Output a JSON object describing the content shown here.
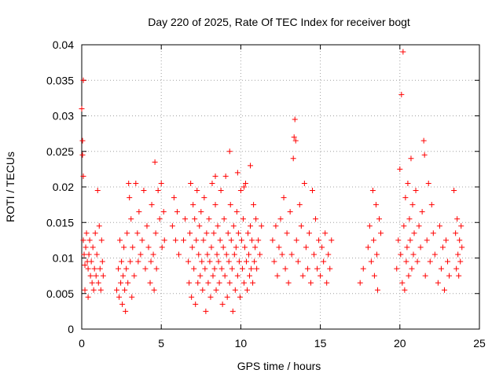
{
  "chart_data": {
    "type": "scatter",
    "title": "Day 220 of 2025, Rate Of TEC Index for receiver bogt",
    "xlabel": "GPS time / hours",
    "ylabel": "ROTI / TECUs",
    "xlim": [
      0,
      25
    ],
    "ylim": [
      0,
      0.04
    ],
    "xticks": [
      0,
      5,
      10,
      15,
      20,
      25
    ],
    "xtick_labels": [
      "0",
      "5",
      "10",
      "15",
      "20",
      "25"
    ],
    "yticks": [
      0,
      0.005,
      0.01,
      0.015,
      0.02,
      0.025,
      0.03,
      0.035,
      0.04
    ],
    "ytick_labels": [
      "0",
      "0.005",
      "0.01",
      "0.015",
      "0.02",
      "0.025",
      "0.03",
      "0.035",
      "0.04"
    ],
    "grid": true,
    "marker": "+",
    "color": "#ff0000",
    "series": [
      {
        "name": "ROTI",
        "points": [
          [
            0.0,
            0.031
          ],
          [
            0.05,
            0.0265
          ],
          [
            0.05,
            0.0245
          ],
          [
            0.1,
            0.035
          ],
          [
            0.1,
            0.0215
          ],
          [
            0.1,
            0.0125
          ],
          [
            0.15,
            0.0105
          ],
          [
            0.2,
            0.009
          ],
          [
            0.2,
            0.0055
          ],
          [
            0.25,
            0.0115
          ],
          [
            0.3,
            0.0135
          ],
          [
            0.35,
            0.0095
          ],
          [
            0.4,
            0.0085
          ],
          [
            0.4,
            0.0045
          ],
          [
            0.45,
            0.0105
          ],
          [
            0.5,
            0.0125
          ],
          [
            0.55,
            0.0075
          ],
          [
            0.6,
            0.0095
          ],
          [
            0.65,
            0.0065
          ],
          [
            0.7,
            0.0115
          ],
          [
            0.75,
            0.0055
          ],
          [
            0.8,
            0.0085
          ],
          [
            0.85,
            0.0135
          ],
          [
            0.9,
            0.0075
          ],
          [
            0.95,
            0.0105
          ],
          [
            1.0,
            0.0195
          ],
          [
            1.05,
            0.0065
          ],
          [
            1.1,
            0.0145
          ],
          [
            1.15,
            0.0085
          ],
          [
            1.2,
            0.0055
          ],
          [
            1.25,
            0.0125
          ],
          [
            1.3,
            0.0095
          ],
          [
            1.35,
            0.0075
          ],
          [
            2.2,
            0.0055
          ],
          [
            2.3,
            0.0085
          ],
          [
            2.35,
            0.0045
          ],
          [
            2.4,
            0.0125
          ],
          [
            2.45,
            0.0065
          ],
          [
            2.5,
            0.0095
          ],
          [
            2.55,
            0.0035
          ],
          [
            2.6,
            0.0075
          ],
          [
            2.65,
            0.0115
          ],
          [
            2.7,
            0.0055
          ],
          [
            2.75,
            0.0025
          ],
          [
            2.8,
            0.0085
          ],
          [
            2.85,
            0.0135
          ],
          [
            2.9,
            0.0065
          ],
          [
            2.95,
            0.0205
          ],
          [
            3.0,
            0.0185
          ],
          [
            3.05,
            0.0095
          ],
          [
            3.1,
            0.0155
          ],
          [
            3.15,
            0.0045
          ],
          [
            3.2,
            0.0115
          ],
          [
            3.3,
            0.0075
          ],
          [
            3.4,
            0.0205
          ],
          [
            3.5,
            0.0135
          ],
          [
            3.55,
            0.0095
          ],
          [
            3.6,
            0.0165
          ],
          [
            3.7,
            0.0105
          ],
          [
            3.8,
            0.0125
          ],
          [
            3.9,
            0.0195
          ],
          [
            4.0,
            0.0085
          ],
          [
            4.1,
            0.0145
          ],
          [
            4.2,
            0.0115
          ],
          [
            4.3,
            0.0065
          ],
          [
            4.35,
            0.0095
          ],
          [
            4.4,
            0.0175
          ],
          [
            4.5,
            0.0105
          ],
          [
            4.55,
            0.0055
          ],
          [
            4.6,
            0.0235
          ],
          [
            4.65,
            0.0135
          ],
          [
            4.7,
            0.0085
          ],
          [
            4.8,
            0.0195
          ],
          [
            4.9,
            0.0155
          ],
          [
            5.0,
            0.0205
          ],
          [
            5.05,
            0.0115
          ],
          [
            5.15,
            0.0165
          ],
          [
            5.2,
            0.0125
          ],
          [
            5.7,
            0.0145
          ],
          [
            5.8,
            0.0185
          ],
          [
            5.9,
            0.0125
          ],
          [
            6.0,
            0.0165
          ],
          [
            6.1,
            0.0105
          ],
          [
            6.4,
            0.0125
          ],
          [
            6.5,
            0.0155
          ],
          [
            6.7,
            0.0095
          ],
          [
            6.75,
            0.0065
          ],
          [
            6.8,
            0.0135
          ],
          [
            6.85,
            0.0205
          ],
          [
            6.9,
            0.0045
          ],
          [
            6.95,
            0.0115
          ],
          [
            7.0,
            0.0175
          ],
          [
            7.05,
            0.0085
          ],
          [
            7.1,
            0.0155
          ],
          [
            7.15,
            0.0035
          ],
          [
            7.2,
            0.0125
          ],
          [
            7.25,
            0.0195
          ],
          [
            7.3,
            0.0065
          ],
          [
            7.35,
            0.0105
          ],
          [
            7.4,
            0.0145
          ],
          [
            7.45,
            0.0075
          ],
          [
            7.5,
            0.0165
          ],
          [
            7.55,
            0.0095
          ],
          [
            7.6,
            0.0055
          ],
          [
            7.65,
            0.0125
          ],
          [
            7.7,
            0.0185
          ],
          [
            7.75,
            0.0085
          ],
          [
            7.8,
            0.0025
          ],
          [
            7.85,
            0.0135
          ],
          [
            7.9,
            0.0105
          ],
          [
            7.95,
            0.0065
          ],
          [
            8.0,
            0.0155
          ],
          [
            8.05,
            0.0095
          ],
          [
            8.1,
            0.0045
          ],
          [
            8.15,
            0.0115
          ],
          [
            8.2,
            0.0205
          ],
          [
            8.25,
            0.0075
          ],
          [
            8.3,
            0.0135
          ],
          [
            8.35,
            0.0085
          ],
          [
            8.4,
            0.0175
          ],
          [
            8.45,
            0.0055
          ],
          [
            8.5,
            0.0105
          ],
          [
            8.55,
            0.0145
          ],
          [
            8.6,
            0.0095
          ],
          [
            8.65,
            0.0065
          ],
          [
            8.7,
            0.0125
          ],
          [
            8.75,
            0.0195
          ],
          [
            8.8,
            0.0085
          ],
          [
            8.85,
            0.0035
          ],
          [
            8.9,
            0.0115
          ],
          [
            8.95,
            0.0155
          ],
          [
            9.0,
            0.0075
          ],
          [
            9.05,
            0.0215
          ],
          [
            9.1,
            0.0105
          ],
          [
            9.15,
            0.0045
          ],
          [
            9.2,
            0.0135
          ],
          [
            9.25,
            0.0095
          ],
          [
            9.3,
            0.0065
          ],
          [
            9.35,
            0.0175
          ],
          [
            9.4,
            0.0125
          ],
          [
            9.45,
            0.0085
          ],
          [
            9.5,
            0.0025
          ],
          [
            9.55,
            0.0145
          ],
          [
            9.6,
            0.0105
          ],
          [
            9.65,
            0.0055
          ],
          [
            9.7,
            0.0115
          ],
          [
            9.75,
            0.0165
          ],
          [
            9.8,
            0.0075
          ],
          [
            9.85,
            0.0135
          ],
          [
            9.9,
            0.0095
          ],
          [
            9.95,
            0.0045
          ],
          [
            10.0,
            0.0195
          ],
          [
            10.05,
            0.0125
          ],
          [
            10.1,
            0.0085
          ],
          [
            10.15,
            0.0155
          ],
          [
            10.2,
            0.0065
          ],
          [
            10.25,
            0.0115
          ],
          [
            10.3,
            0.0205
          ],
          [
            10.35,
            0.0095
          ],
          [
            10.4,
            0.0055
          ],
          [
            10.45,
            0.0135
          ],
          [
            10.5,
            0.0105
          ],
          [
            10.55,
            0.0075
          ],
          [
            10.6,
            0.0145
          ],
          [
            10.65,
            0.0085
          ],
          [
            10.7,
            0.0125
          ],
          [
            10.75,
            0.0065
          ],
          [
            10.8,
            0.0175
          ],
          [
            10.85,
            0.0095
          ],
          [
            10.9,
            0.0115
          ],
          [
            10.95,
            0.0155
          ],
          [
            11.0,
            0.0085
          ],
          [
            11.1,
            0.0125
          ],
          [
            11.2,
            0.0105
          ],
          [
            11.3,
            0.0145
          ],
          [
            9.3,
            0.025
          ],
          [
            8.4,
            0.0215
          ],
          [
            10.6,
            0.023
          ],
          [
            9.8,
            0.022
          ],
          [
            10.2,
            0.02
          ],
          [
            12.0,
            0.0125
          ],
          [
            12.1,
            0.0095
          ],
          [
            12.2,
            0.0145
          ],
          [
            12.3,
            0.0075
          ],
          [
            12.4,
            0.0115
          ],
          [
            12.5,
            0.0155
          ],
          [
            12.6,
            0.0105
          ],
          [
            12.7,
            0.0185
          ],
          [
            12.8,
            0.0085
          ],
          [
            12.9,
            0.0135
          ],
          [
            13.0,
            0.0065
          ],
          [
            13.1,
            0.0165
          ],
          [
            13.2,
            0.0105
          ],
          [
            13.3,
            0.024
          ],
          [
            13.35,
            0.027
          ],
          [
            13.4,
            0.0295
          ],
          [
            13.45,
            0.0265
          ],
          [
            13.5,
            0.0125
          ],
          [
            13.6,
            0.0095
          ],
          [
            13.7,
            0.0175
          ],
          [
            13.8,
            0.0145
          ],
          [
            13.9,
            0.0075
          ],
          [
            14.0,
            0.0205
          ],
          [
            14.1,
            0.0115
          ],
          [
            14.2,
            0.0085
          ],
          [
            14.3,
            0.0135
          ],
          [
            14.4,
            0.0065
          ],
          [
            14.5,
            0.0195
          ],
          [
            14.6,
            0.0105
          ],
          [
            14.7,
            0.0155
          ],
          [
            14.8,
            0.0085
          ],
          [
            14.9,
            0.0125
          ],
          [
            15.0,
            0.0075
          ],
          [
            15.1,
            0.0115
          ],
          [
            15.2,
            0.0095
          ],
          [
            15.3,
            0.0135
          ],
          [
            15.4,
            0.0065
          ],
          [
            15.5,
            0.0105
          ],
          [
            15.6,
            0.0085
          ],
          [
            15.7,
            0.0125
          ],
          [
            17.5,
            0.0065
          ],
          [
            17.7,
            0.0085
          ],
          [
            18.0,
            0.0115
          ],
          [
            18.1,
            0.0145
          ],
          [
            18.2,
            0.0095
          ],
          [
            18.3,
            0.0195
          ],
          [
            18.35,
            0.0125
          ],
          [
            18.4,
            0.0075
          ],
          [
            18.5,
            0.0175
          ],
          [
            18.55,
            0.0105
          ],
          [
            18.6,
            0.0055
          ],
          [
            18.7,
            0.0155
          ],
          [
            18.8,
            0.0135
          ],
          [
            19.8,
            0.0085
          ],
          [
            19.9,
            0.0125
          ],
          [
            20.0,
            0.0225
          ],
          [
            20.05,
            0.0105
          ],
          [
            20.1,
            0.033
          ],
          [
            20.15,
            0.0065
          ],
          [
            20.2,
            0.039
          ],
          [
            20.25,
            0.0145
          ],
          [
            20.3,
            0.0055
          ],
          [
            20.35,
            0.0185
          ],
          [
            20.4,
            0.0095
          ],
          [
            20.45,
            0.0115
          ],
          [
            20.5,
            0.0205
          ],
          [
            20.55,
            0.0075
          ],
          [
            20.6,
            0.0155
          ],
          [
            20.65,
            0.0125
          ],
          [
            20.7,
            0.024
          ],
          [
            20.75,
            0.0085
          ],
          [
            20.8,
            0.0175
          ],
          [
            20.85,
            0.0105
          ],
          [
            20.9,
            0.0135
          ],
          [
            21.0,
            0.0195
          ],
          [
            21.1,
            0.0095
          ],
          [
            21.2,
            0.0145
          ],
          [
            21.3,
            0.0115
          ],
          [
            21.4,
            0.0165
          ],
          [
            21.5,
            0.0265
          ],
          [
            21.55,
            0.0245
          ],
          [
            21.6,
            0.0075
          ],
          [
            21.7,
            0.0125
          ],
          [
            21.8,
            0.0205
          ],
          [
            21.9,
            0.0095
          ],
          [
            22.0,
            0.0175
          ],
          [
            22.1,
            0.0135
          ],
          [
            22.2,
            0.0105
          ],
          [
            22.4,
            0.0065
          ],
          [
            22.5,
            0.0145
          ],
          [
            22.6,
            0.0085
          ],
          [
            22.7,
            0.0115
          ],
          [
            22.8,
            0.0055
          ],
          [
            22.9,
            0.0125
          ],
          [
            23.0,
            0.0095
          ],
          [
            23.1,
            0.0075
          ],
          [
            23.4,
            0.0195
          ],
          [
            23.5,
            0.0135
          ],
          [
            23.55,
            0.0085
          ],
          [
            23.6,
            0.0155
          ],
          [
            23.65,
            0.0105
          ],
          [
            23.7,
            0.0075
          ],
          [
            23.75,
            0.0125
          ],
          [
            23.8,
            0.0095
          ],
          [
            23.85,
            0.0145
          ],
          [
            23.9,
            0.0115
          ]
        ]
      }
    ]
  }
}
